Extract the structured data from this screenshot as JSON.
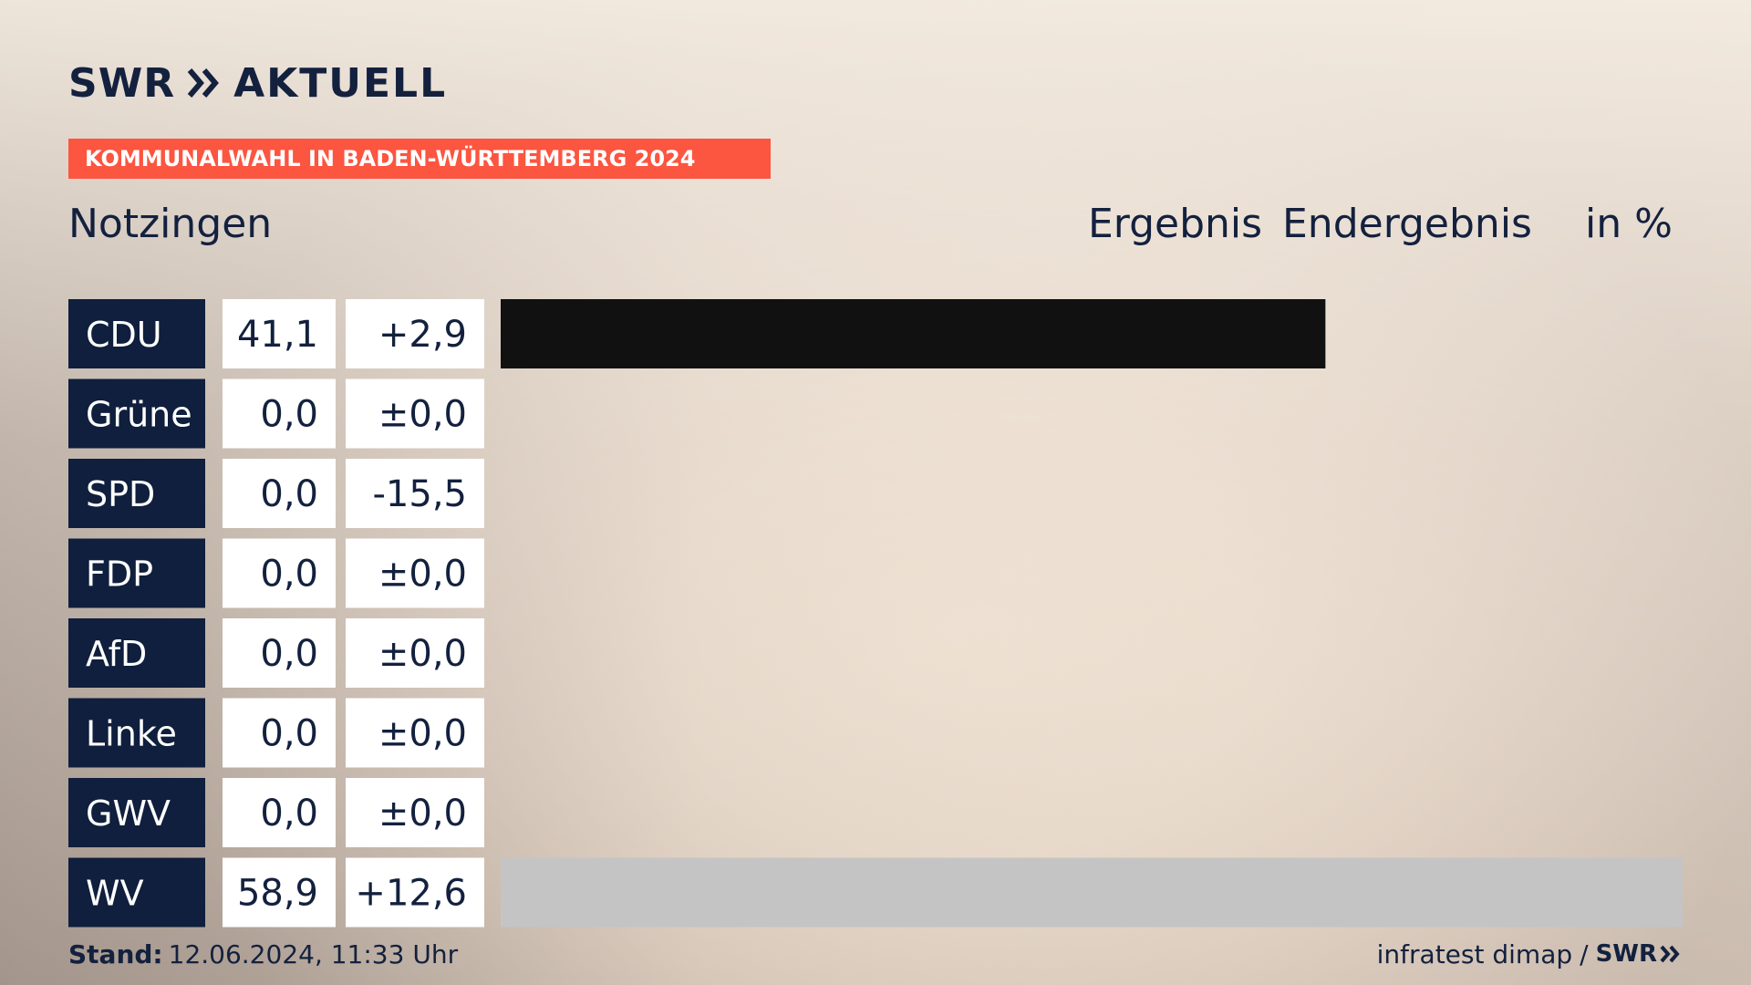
{
  "brand": {
    "logo_swr": "SWR",
    "logo_aktuell": "AKTUELL"
  },
  "banner": {
    "text": "KOMMUNALWAHL IN BADEN-WÜRTTEMBERG 2024"
  },
  "header": {
    "place": "Notzingen",
    "col_ergebnis": "Ergebnis",
    "col_endergebnis": "Endergebnis",
    "col_unit": "in %"
  },
  "colors": {
    "party_bg": "#0f1f3d",
    "cell_bg": "#ffffff",
    "banner": "#fc5540",
    "bar_cdu": "#111111",
    "bar_wv": "#c4c4c4"
  },
  "chart_data": {
    "type": "bar",
    "orientation": "horizontal",
    "categories": [
      "CDU",
      "Grüne",
      "SPD",
      "FDP",
      "AfD",
      "Linke",
      "GWV",
      "WV"
    ],
    "values": [
      41.1,
      0.0,
      0.0,
      0.0,
      0.0,
      0.0,
      0.0,
      58.9
    ],
    "value_labels": [
      "41,1",
      "0,0",
      "0,0",
      "0,0",
      "0,0",
      "0,0",
      "0,0",
      "58,9"
    ],
    "change_labels": [
      "+2,9",
      "±0,0",
      "-15,5",
      "±0,0",
      "±0,0",
      "±0,0",
      "±0,0",
      "+12,6"
    ],
    "bar_colors": [
      "#111111",
      "#111111",
      "#111111",
      "#111111",
      "#111111",
      "#111111",
      "#111111",
      "#c4c4c4"
    ],
    "xlim": [
      0,
      58.9
    ]
  },
  "footer": {
    "stand_label": "Stand:",
    "stand_value": "12.06.2024, 11:33 Uhr",
    "source": "infratest dimap",
    "sep": "/",
    "source_brand": "SWR"
  }
}
